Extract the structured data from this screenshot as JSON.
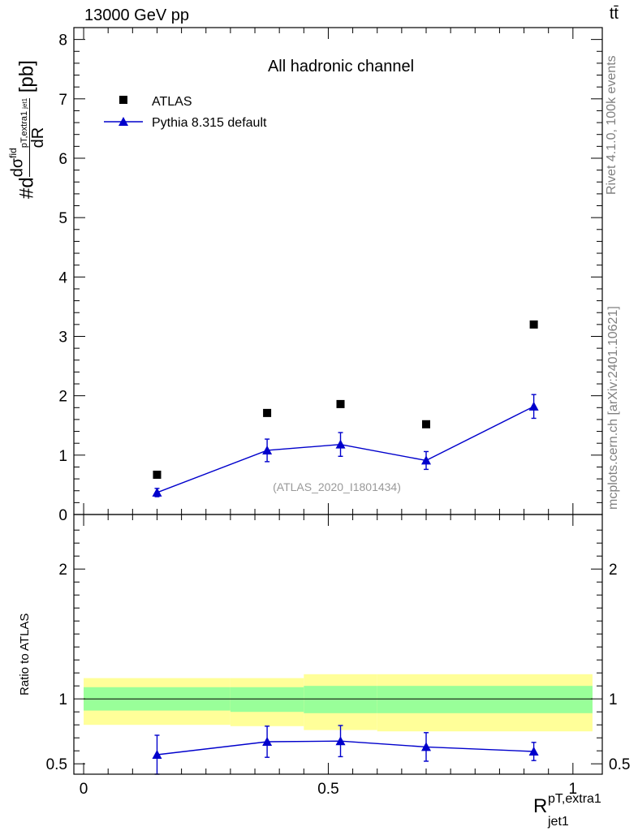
{
  "header": {
    "energy_label": "13000 GeV pp",
    "process_label": "tt̄"
  },
  "side_text": {
    "rivet": "Rivet 4.1.0,  100k events",
    "mcplots": "mcplots.cern.ch [arXiv:2401.10621]"
  },
  "labels": {
    "ylabel_main": "#d dσ/dR  σ^fid  pT,extra1 / jet1  [pb]",
    "ylabel_main_d": "#d",
    "ylabel_main_sigma": "dσ",
    "ylabel_main_fid": "fid",
    "ylabel_main_sub": "pT,extra1",
    "ylabel_main_jet": "jet1",
    "ylabel_main_dR": "dR",
    "ylabel_main_unit": "[pb]",
    "ylabel_ratio": "Ratio to ATLAS",
    "xlabel_base": "R",
    "xlabel_sup": "pT,extra1",
    "xlabel_sub": "jet1"
  },
  "chart_data": [
    {
      "type": "scatter",
      "title": "All hadronic channel",
      "watermark": "(ATLAS_2020_I1801434)",
      "ylim": [
        0,
        8.2
      ],
      "yticks": [
        0,
        1,
        2,
        3,
        4,
        5,
        6,
        7,
        8
      ],
      "xlim": [
        -0.02,
        1.06
      ],
      "xticks": [
        0,
        0.5,
        1
      ],
      "legend": {
        "position": "top-left",
        "entries": [
          "ATLAS",
          "Pythia 8.315 default"
        ]
      },
      "series": [
        {
          "name": "ATLAS",
          "marker": "square",
          "color": "#000000",
          "x": [
            0.15,
            0.375,
            0.525,
            0.7,
            0.92
          ],
          "y": [
            0.67,
            1.71,
            1.86,
            1.52,
            3.2
          ]
        },
        {
          "name": "Pythia 8.315 default",
          "marker": "triangle",
          "color": "#0000cc",
          "line": true,
          "x": [
            0.15,
            0.375,
            0.525,
            0.7,
            0.92
          ],
          "y": [
            0.37,
            1.08,
            1.18,
            0.91,
            1.82
          ],
          "err": [
            0.07,
            0.19,
            0.2,
            0.15,
            0.2
          ]
        }
      ]
    },
    {
      "type": "scatter",
      "title": "Ratio to ATLAS",
      "ylim": [
        0.42,
        2.42
      ],
      "yticks": [
        0.5,
        1,
        2
      ],
      "ytick_labels": [
        "0.5",
        "1",
        "2"
      ],
      "xlim": [
        -0.02,
        1.06
      ],
      "xticks": [
        0,
        0.5,
        1
      ],
      "xtick_labels": [
        "0",
        "0.5",
        "1"
      ],
      "bands": {
        "edges": [
          0,
          0.3,
          0.45,
          0.6,
          1.04
        ],
        "green": [
          [
            0.91,
            1.09
          ],
          [
            0.9,
            1.09
          ],
          [
            0.89,
            1.1
          ],
          [
            0.89,
            1.1
          ]
        ],
        "yellow": [
          [
            0.8,
            1.16
          ],
          [
            0.79,
            1.16
          ],
          [
            0.76,
            1.19
          ],
          [
            0.75,
            1.19
          ]
        ]
      },
      "series": [
        {
          "name": "Pythia 8.315 default",
          "marker": "triangle",
          "color": "#0000cc",
          "line": true,
          "x": [
            0.15,
            0.375,
            0.525,
            0.7,
            0.92
          ],
          "y": [
            0.57,
            0.67,
            0.675,
            0.63,
            0.595
          ],
          "err": [
            0.15,
            0.12,
            0.12,
            0.11,
            0.07
          ]
        }
      ]
    }
  ]
}
